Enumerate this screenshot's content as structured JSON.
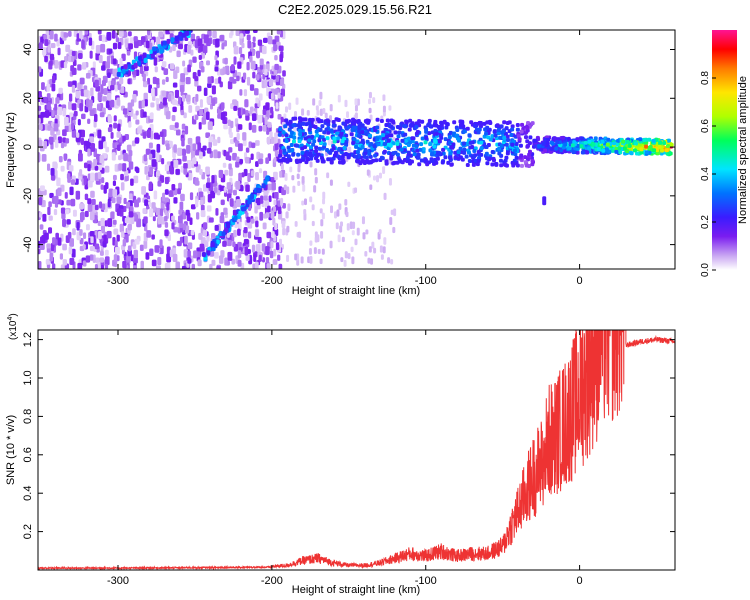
{
  "figure_title": "C2E2.2025.029.15.56.R21",
  "chart_data": [
    {
      "type": "heatmap",
      "xlabel": "Height of straight line (km)",
      "ylabel": "Frequency (Hz)",
      "xlim": [
        -352,
        62
      ],
      "ylim": [
        -50,
        48
      ],
      "xticks": [
        -300,
        -200,
        -100,
        0
      ],
      "yticks": [
        -40,
        -20,
        0,
        20,
        40
      ],
      "colorbar": {
        "label": "Normalized spectral amplitude",
        "range": [
          0,
          1
        ],
        "ticks": [
          0.0,
          0.2,
          0.4,
          0.6,
          0.8
        ],
        "tick_labels": [
          "0.0",
          "0.2",
          "0.4",
          "0.6",
          "0.8"
        ],
        "colormap": [
          "#ffffff",
          "#c9a6f2",
          "#7a1df0",
          "#3a1cff",
          "#0073ff",
          "#00e5ff",
          "#00ff5a",
          "#b0ff00",
          "#ffe600",
          "#ff7a00",
          "#ff0000",
          "#ff1493"
        ]
      },
      "features": [
        {
          "name": "center band",
          "x": [
            -195,
            60
          ],
          "y_center": [
            3,
            0
          ],
          "amplitude": [
            0.25,
            0.9
          ]
        },
        {
          "name": "rising diagonal upper",
          "x": [
            -300,
            -252
          ],
          "y": [
            30,
            48
          ]
        },
        {
          "name": "rising diagonal lower",
          "x": [
            -245,
            -202
          ],
          "y": [
            -46,
            -12
          ]
        },
        {
          "name": "isolated spot",
          "x": -23,
          "y": -22
        }
      ],
      "grid": false
    },
    {
      "type": "line",
      "xlabel": "Height of straight line (km)",
      "ylabel": "SNR (10 * v/v)",
      "scale_label": "(x10",
      "scale_exponent": "4",
      "xlim": [
        -352,
        62
      ],
      "ylim": [
        0,
        1.25
      ],
      "xticks": [
        -300,
        -200,
        -100,
        0
      ],
      "yticks": [
        0.2,
        0.4,
        0.6,
        0.8,
        1.0,
        1.2
      ],
      "series": [
        {
          "color": "#ee3333",
          "x": [
            -352,
            -300,
            -250,
            -200,
            -190,
            -180,
            -170,
            -160,
            -150,
            -140,
            -130,
            -120,
            -110,
            -100,
            -90,
            -80,
            -70,
            -60,
            -50,
            -45,
            -40,
            -35,
            -30,
            -25,
            -20,
            -15,
            -10,
            -5,
            0,
            5,
            10,
            15,
            20,
            25,
            30,
            40,
            50,
            62
          ],
          "values": [
            0.01,
            0.01,
            0.012,
            0.015,
            0.02,
            0.04,
            0.05,
            0.03,
            0.02,
            0.02,
            0.03,
            0.05,
            0.07,
            0.06,
            0.08,
            0.06,
            0.07,
            0.07,
            0.1,
            0.18,
            0.25,
            0.33,
            0.4,
            0.45,
            0.55,
            0.58,
            0.62,
            0.68,
            0.75,
            0.85,
            0.95,
            1.05,
            1.1,
            1.15,
            1.17,
            1.19,
            1.2,
            1.19
          ]
        }
      ],
      "grid": false
    }
  ]
}
